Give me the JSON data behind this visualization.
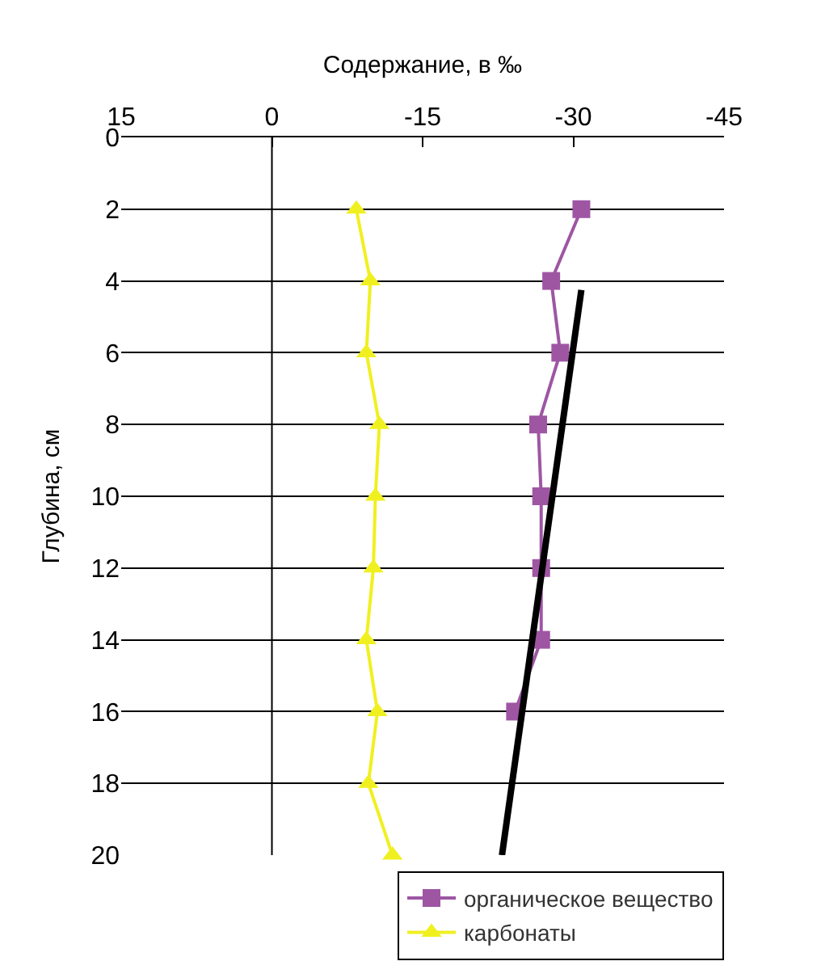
{
  "chart_data": {
    "type": "line",
    "orientation": "horizontal",
    "xlabel": "Содержание, в ‰",
    "ylabel": "Глубина, см",
    "xlim": [
      15,
      -45
    ],
    "xticks": [
      15,
      0,
      -15,
      -30,
      -45
    ],
    "ylim": [
      20,
      0
    ],
    "yticks": [
      0,
      2,
      4,
      6,
      8,
      10,
      12,
      14,
      16,
      18,
      20
    ],
    "grid": "y",
    "legend": "bottom right",
    "ref_lines": [
      {
        "axis": "x",
        "value": 0,
        "color": "#000000"
      }
    ],
    "series": [
      {
        "name": "органическое вещество",
        "color": "#9e56a3",
        "marker": "square",
        "x": [
          2,
          4,
          6,
          8,
          10,
          12,
          14,
          16
        ],
        "values": [
          -30.8,
          -27.8,
          -28.7,
          -26.5,
          -26.8,
          -26.8,
          -26.8,
          -24.2
        ]
      },
      {
        "name": "карбонаты",
        "color": "#f0f020",
        "marker": "triangle",
        "x": [
          2,
          4,
          6,
          8,
          10,
          12,
          14,
          16,
          18,
          20
        ],
        "values": [
          -8.4,
          -9.8,
          -9.4,
          -10.7,
          -10.3,
          -10.1,
          -9.4,
          -10.5,
          -9.6,
          -12
        ]
      },
      {
        "color": "#000000",
        "marker": "none",
        "x": [
          4.25,
          20
        ],
        "values": [
          -30.8,
          -22.9
        ]
      }
    ]
  }
}
